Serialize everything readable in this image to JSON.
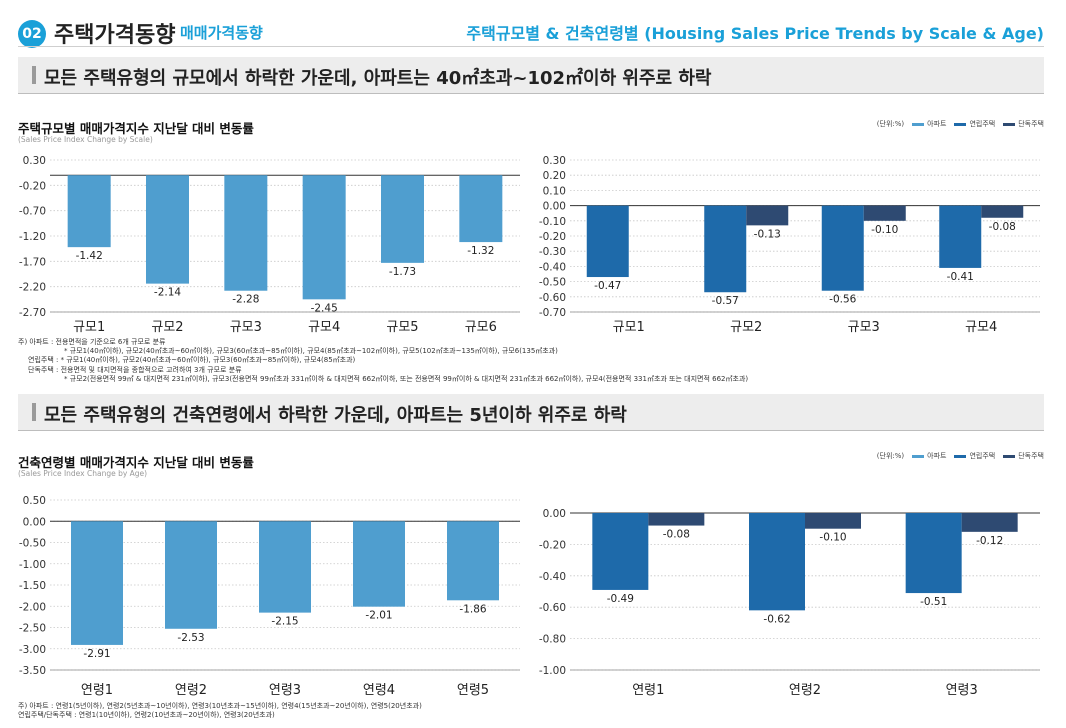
{
  "header": {
    "badge": "02",
    "title": "주택가격동향",
    "subtitle": "매매가격동향",
    "right_title": "주택규모별 & 건축연령별 (Housing Sales Price Trends by Scale & Age)"
  },
  "section1": {
    "banner": "모든 주택유형의 규모에서  하락한 가운데, 아파트는 40㎡초과~102㎡이하 위주로 하락",
    "title": "주택규모별 매매가격지수 지난달 대비 변동률",
    "subtitle": "(Sales Price Index Change by Scale)",
    "notes": [
      "주) 아파트 : 전용면적을 기준으로 6개 규모로 분류",
      "* 규모1(40㎡이하), 규모2(40㎡초과~60㎡이하), 규모3(60㎡초과~85㎡이하), 규모4(85㎡초과~102㎡이하), 규모5(102㎡초과~135㎡이하), 규모6(135㎡초과)",
      "연립주택 : * 규모1(40㎡이하), 규모2(40㎡초과~60㎡이하), 규모3(60㎡초과~85㎡이하), 규모4(85㎡초과)",
      "단독주택 : 전용면적 및 대지면적을 종합적으로 고려하여 3개 규모로 분류",
      "* 규모2(전용면적 99㎡ & 대지면적 231㎡이하), 규모3(전용면적 99㎡초과 331㎡이하 & 대지면적 662㎡이하, 또는 전용면적 99㎡이하 & 대지면적 231㎡초과 662㎡이하), 규모4(전용면적 331㎡초과 또는 대지면적 662㎡초과)"
    ]
  },
  "section2": {
    "banner": "모든 주택유형의 건축연령에서 하락한 가운데, 아파트는 5년이하 위주로 하락",
    "title": "건축연령별 매매가격지수 지난달 대비 변동률",
    "subtitle": "(Sales Price Index Change by Age)",
    "notes": [
      "주) 아파트 : 연령1(5년이하), 연령2(5년초과~10년이하), 연령3(10년초과~15년이하), 연령4(15년초과~20년이하), 연령5(20년초과)",
      "연립주택/단독주택 : 연령1(10년이하), 연령2(10년초과~20년이하), 연령3(20년초과)"
    ]
  },
  "legend": {
    "unit": "(단위:%)",
    "items": [
      {
        "label": "아파트",
        "color": "#4f9ecf"
      },
      {
        "label": "연립주택",
        "color": "#1e6aaa"
      },
      {
        "label": "단독주택",
        "color": "#2e4a72"
      }
    ]
  },
  "chart_data": [
    {
      "type": "bar",
      "title": "주택규모별 매매가격지수 지난달 대비 변동률 (아파트)",
      "categories": [
        "규모1",
        "규모2",
        "규모3",
        "규모4",
        "규모5",
        "규모6"
      ],
      "series": [
        {
          "name": "아파트",
          "values": [
            -1.42,
            -2.14,
            -2.28,
            -2.45,
            -1.73,
            -1.32
          ]
        }
      ],
      "yticks": [
        "0.30",
        "-0.20",
        "-0.70",
        "-1.20",
        "-1.70",
        "-2.20",
        "-2.70"
      ],
      "ylim": [
        -2.7,
        0.3
      ]
    },
    {
      "type": "bar",
      "title": "주택규모별 매매가격지수 지난달 대비 변동률 (연립·단독)",
      "categories": [
        "규모1",
        "규모2",
        "규모3",
        "규모4"
      ],
      "series": [
        {
          "name": "연립주택",
          "values": [
            -0.47,
            -0.57,
            -0.56,
            -0.41
          ]
        },
        {
          "name": "단독주택",
          "values": [
            null,
            -0.13,
            -0.1,
            -0.08
          ]
        }
      ],
      "yticks": [
        "0.30",
        "0.20",
        "0.10",
        "0.00",
        "-0.10",
        "-0.20",
        "-0.30",
        "-0.40",
        "-0.50",
        "-0.60",
        "-0.70"
      ],
      "ylim": [
        -0.7,
        0.3
      ]
    },
    {
      "type": "bar",
      "title": "건축연령별 매매가격지수 지난달 대비 변동률 (아파트)",
      "categories": [
        "연령1",
        "연령2",
        "연령3",
        "연령4",
        "연령5"
      ],
      "series": [
        {
          "name": "아파트",
          "values": [
            -2.91,
            -2.53,
            -2.15,
            -2.01,
            -1.86
          ]
        }
      ],
      "yticks": [
        "0.50",
        "0.00",
        "-0.50",
        "-1.00",
        "-1.50",
        "-2.00",
        "-2.50",
        "-3.00",
        "-3.50"
      ],
      "ylim": [
        -3.5,
        0.5
      ]
    },
    {
      "type": "bar",
      "title": "건축연령별 매매가격지수 지난달 대비 변동률 (연립·단독)",
      "categories": [
        "연령1",
        "연령2",
        "연령3"
      ],
      "series": [
        {
          "name": "연립주택",
          "values": [
            -0.49,
            -0.62,
            -0.51
          ]
        },
        {
          "name": "단독주택",
          "values": [
            -0.08,
            -0.1,
            -0.12
          ]
        }
      ],
      "yticks": [
        "0.00",
        "-0.20",
        "-0.40",
        "-0.60",
        "-0.80",
        "-1.00"
      ],
      "ylim": [
        -1.0,
        0.1
      ]
    }
  ]
}
